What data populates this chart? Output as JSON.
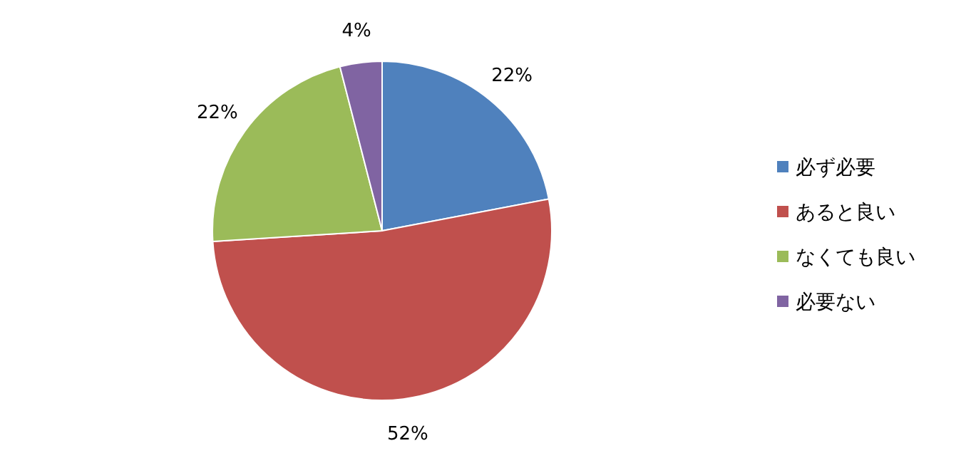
{
  "chart_data": {
    "type": "pie",
    "categories": [
      "必ず必要",
      "あると良い",
      "なくても良い",
      "必要ない"
    ],
    "values": [
      22,
      52,
      22,
      4
    ],
    "colors": [
      "#4f81bd",
      "#c0504d",
      "#9bbb59",
      "#8064a2"
    ],
    "value_labels": [
      "22%",
      "52%",
      "22%",
      "4%"
    ],
    "legend": "right"
  }
}
